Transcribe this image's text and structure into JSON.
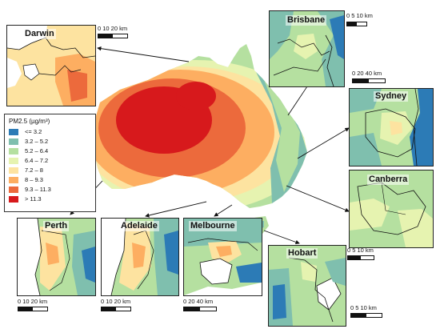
{
  "legend": {
    "title": "PM2.5 (µg/m³)",
    "items": [
      {
        "label": "<= 3.2",
        "color": "#2c7bb6"
      },
      {
        "label": "3.2 – 5.2",
        "color": "#7fbfae"
      },
      {
        "label": "5.2 – 6.4",
        "color": "#b5e0a0"
      },
      {
        "label": "6.4 – 7.2",
        "color": "#e6f3b0"
      },
      {
        "label": "7.2 – 8",
        "color": "#fde3a0"
      },
      {
        "label": "8 – 9.3",
        "color": "#fdae61"
      },
      {
        "label": "9.3 – 11.3",
        "color": "#ec6a3c"
      },
      {
        "label": "> 11.3",
        "color": "#d7191c"
      }
    ]
  },
  "panels": {
    "darwin": {
      "title": "Darwin",
      "scale": "0  10  20 km"
    },
    "brisbane": {
      "title": "Brisbane",
      "scale": "0  5 10 km"
    },
    "sydney": {
      "title": "Sydney",
      "scale": "0     20    40 km"
    },
    "canberra": {
      "title": "Canberra"
    },
    "perth": {
      "title": "Perth",
      "scale": "0   10   20 km"
    },
    "adelaide": {
      "title": "Adelaide",
      "scale": "0   10   20 km"
    },
    "melbourne": {
      "title": "Melbourne",
      "scale": "0    20   40 km"
    },
    "hobart": {
      "title": "Hobart",
      "scale": "0    5   10 km",
      "scale_bottom": "0     5    10 km"
    }
  }
}
